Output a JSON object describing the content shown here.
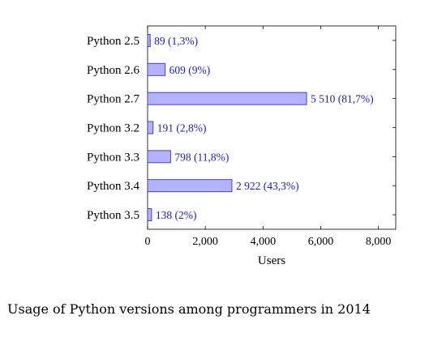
{
  "chart_data": {
    "type": "bar",
    "orientation": "horizontal",
    "categories": [
      "Python 2.5",
      "Python 2.6",
      "Python 2.7",
      "Python 3.2",
      "Python 3.3",
      "Python 3.4",
      "Python 3.5"
    ],
    "values": [
      89,
      609,
      5510,
      191,
      798,
      2922,
      138
    ],
    "data_labels": [
      "89 (1,3%)",
      "609 (9%)",
      "5 510 (81,7%)",
      "191 (2,8%)",
      "798 (11,8%)",
      "2 922 (43,3%)",
      "138 (2%)"
    ],
    "xlabel": "Users",
    "xlim": [
      0,
      8600
    ],
    "xticks": [
      0,
      2000,
      4000,
      6000,
      8000
    ],
    "xtick_labels": [
      "0",
      "2,000",
      "4,000",
      "6,000",
      "8,000"
    ],
    "grid": false,
    "legend": "none",
    "colors": {
      "bar_fill": "#b3b3ff",
      "bar_stroke": "#3333cc",
      "label_text": "#1a1acc"
    }
  },
  "caption": "Usage of Python versions among programmers in 2014"
}
